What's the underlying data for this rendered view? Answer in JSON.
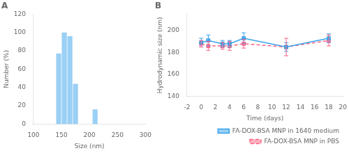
{
  "chart_data": [
    {
      "type": "bar",
      "title": "A",
      "x": [
        145,
        155,
        165,
        175,
        185,
        210
      ],
      "values": [
        77,
        100,
        96,
        44,
        0,
        16
      ],
      "xlabel": "Size (nm)",
      "ylabel": "Number (%)",
      "xlim": [
        100,
        300
      ],
      "ylim": [
        0,
        120
      ],
      "xticks": [
        100,
        150,
        200,
        250,
        300
      ],
      "yticks": [
        0,
        20,
        40,
        60,
        80,
        100,
        120
      ],
      "grid": false
    },
    {
      "type": "line",
      "title": "B",
      "xlabel": "Time (days)",
      "ylabel": "Hydrodynamic size (nm)",
      "xlim": [
        -2,
        20
      ],
      "ylim": [
        140,
        215
      ],
      "xticks": [
        -2,
        0,
        2,
        4,
        6,
        8,
        10,
        12,
        14,
        16,
        18,
        20
      ],
      "yticks": [
        140,
        160,
        180,
        200
      ],
      "grid": false,
      "legend": "lower right",
      "x": [
        0,
        1,
        3,
        4,
        6,
        12,
        18
      ],
      "series": [
        {
          "name": "FA-DOX-BSA MNP in 1640 medium",
          "values": [
            189,
            191,
            188,
            188,
            193,
            185,
            193
          ],
          "yerr": [
            4,
            5,
            3,
            3,
            5,
            4,
            4
          ],
          "marker": "square",
          "line_style": "solid"
        },
        {
          "name": "FA-DOX-BSA MNP in PBS",
          "values": [
            188,
            186,
            186,
            186,
            188,
            185,
            191
          ],
          "yerr": [
            3,
            4,
            3,
            4,
            4,
            8,
            5
          ],
          "marker": "square",
          "line_style": "dashed"
        }
      ]
    }
  ]
}
